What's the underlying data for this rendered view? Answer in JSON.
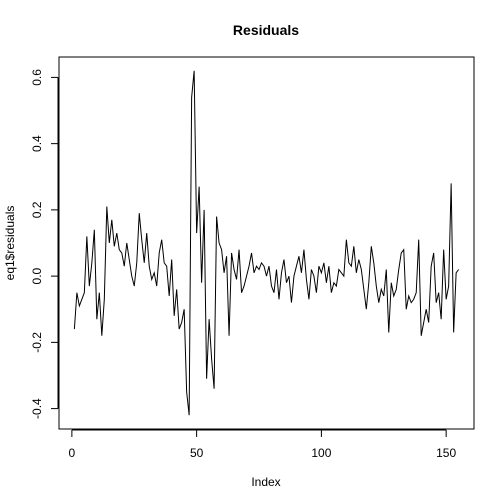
{
  "chart_data": {
    "type": "line",
    "title": "Residuals",
    "xlabel": "Index",
    "ylabel": "eq1$residuals",
    "x": [
      1,
      2,
      3,
      4,
      5,
      6,
      7,
      8,
      9,
      10,
      11,
      12,
      13,
      14,
      15,
      16,
      17,
      18,
      19,
      20,
      21,
      22,
      23,
      24,
      25,
      26,
      27,
      28,
      29,
      30,
      31,
      32,
      33,
      34,
      35,
      36,
      37,
      38,
      39,
      40,
      41,
      42,
      43,
      44,
      45,
      46,
      47,
      48,
      49,
      50,
      51,
      52,
      53,
      54,
      55,
      56,
      57,
      58,
      59,
      60,
      61,
      62,
      63,
      64,
      65,
      66,
      67,
      68,
      69,
      70,
      71,
      72,
      73,
      74,
      75,
      76,
      77,
      78,
      79,
      80,
      81,
      82,
      83,
      84,
      85,
      86,
      87,
      88,
      89,
      90,
      91,
      92,
      93,
      94,
      95,
      96,
      97,
      98,
      99,
      100,
      101,
      102,
      103,
      104,
      105,
      106,
      107,
      108,
      109,
      110,
      111,
      112,
      113,
      114,
      115,
      116,
      117,
      118,
      119,
      120,
      121,
      122,
      123,
      124,
      125,
      126,
      127,
      128,
      129,
      130,
      131,
      132,
      133,
      134,
      135,
      136,
      137,
      138,
      139,
      140,
      141,
      142,
      143,
      144,
      145,
      146,
      147,
      148,
      149,
      150,
      151,
      152,
      153,
      154,
      155
    ],
    "series": [
      {
        "name": "eq1$residuals",
        "color": "#000000",
        "values": [
          -0.16,
          -0.05,
          -0.09,
          -0.07,
          -0.05,
          0.12,
          -0.03,
          0.04,
          0.14,
          -0.13,
          -0.05,
          -0.18,
          -0.07,
          0.21,
          0.1,
          0.17,
          0.09,
          0.13,
          0.08,
          0.07,
          0.03,
          0.1,
          0.05,
          0.0,
          -0.03,
          0.04,
          0.19,
          0.11,
          0.04,
          0.13,
          0.03,
          -0.01,
          0.01,
          -0.03,
          0.07,
          0.11,
          0.04,
          0.03,
          -0.06,
          0.05,
          -0.12,
          -0.04,
          -0.16,
          -0.14,
          -0.1,
          -0.35,
          -0.42,
          0.54,
          0.62,
          0.13,
          0.27,
          -0.02,
          0.2,
          -0.31,
          -0.13,
          -0.25,
          -0.34,
          0.18,
          0.1,
          0.08,
          0.01,
          0.06,
          -0.18,
          0.07,
          0.02,
          -0.01,
          0.08,
          -0.05,
          -0.03,
          0.0,
          0.03,
          0.07,
          0.01,
          0.03,
          0.02,
          0.04,
          0.03,
          0.0,
          0.03,
          -0.03,
          -0.05,
          0.02,
          -0.07,
          0.01,
          0.05,
          -0.02,
          0.0,
          -0.08,
          0.0,
          0.03,
          0.06,
          0.01,
          0.08,
          -0.01,
          -0.07,
          0.02,
          0.0,
          -0.05,
          0.03,
          0.01,
          0.04,
          -0.02,
          0.03,
          -0.05,
          -0.02,
          -0.03,
          0.02,
          0.01,
          0.0,
          0.11,
          0.04,
          0.03,
          0.09,
          0.01,
          0.05,
          0.02,
          -0.04,
          -0.1,
          -0.02,
          0.09,
          0.04,
          -0.03,
          -0.08,
          -0.04,
          -0.06,
          0.02,
          -0.17,
          -0.02,
          -0.06,
          -0.04,
          0.02,
          0.07,
          0.08,
          -0.1,
          -0.06,
          -0.08,
          -0.07,
          -0.05,
          0.11,
          -0.18,
          -0.14,
          -0.1,
          -0.14,
          0.03,
          0.07,
          -0.08,
          -0.05,
          -0.13,
          0.08,
          -0.07,
          -0.03,
          0.28,
          -0.17,
          0.01,
          0.02
        ]
      }
    ],
    "xlim": [
      -5.16,
      161.16
    ],
    "ylim": [
      -0.4616,
      0.6616
    ],
    "xticks": [
      0,
      50,
      100,
      150
    ],
    "yticks": [
      -0.4,
      -0.2,
      {
        "value": 0,
        "label": "0.0"
      },
      0.2,
      0.4,
      0.6
    ]
  }
}
